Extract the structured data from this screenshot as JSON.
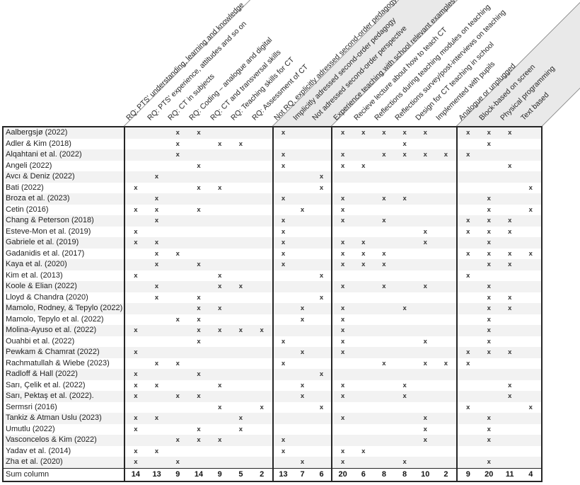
{
  "colors": {
    "row_stripe": "#f2f2f2",
    "band_shade": "#e9e9e9",
    "table_border": "#262626",
    "diagonal_line": "#6e6e6e",
    "text": "#1f1f1f"
  },
  "mark_glyph": "x",
  "header_groups": [
    {
      "shaded": false,
      "columns": [
        "RQ: PTS' understanding, learning and knowledge",
        "RQ: PTS' experience, attitudes and so on",
        "RQ: CT in subjects",
        "RQ: Coding – analogue and digital",
        "RQ: CT and transversal skills",
        "RQ: Teaching skills for CT",
        "RQ: Assessment of CT"
      ]
    },
    {
      "shaded": true,
      "columns": [
        "Not RQ, explicitly adressed second-order pedagogy",
        "Implicitly adressed second-order pedagogy",
        "Not adressed second-order perspective"
      ]
    },
    {
      "shaded": false,
      "columns": [
        "Experience teaching with school relevant examples",
        "Recieve lecture about how to teach CT",
        "Reflections during teaching modules on teaching",
        "Reflections survey/post-interviews on teaching",
        "Design for CT teaching in school",
        "Implemented with pupils"
      ]
    },
    {
      "shaded": true,
      "columns": [
        "Analogue or unplugged",
        "Block-based on screen",
        "Physical programming",
        "Text based"
      ]
    }
  ],
  "rows": [
    {
      "label": "Aalbergsjø (2022)",
      "marks": [
        3,
        4,
        8,
        11,
        12,
        13,
        14,
        15,
        17,
        18,
        19
      ]
    },
    {
      "label": "Adler & Kim (2018)",
      "marks": [
        3,
        5,
        6,
        14,
        18
      ]
    },
    {
      "label": "Alqahtani et al. (2022)",
      "marks": [
        3,
        8,
        11,
        13,
        14,
        15,
        16,
        17
      ]
    },
    {
      "label": "Angeli (2022)",
      "marks": [
        4,
        8,
        11,
        12,
        19
      ]
    },
    {
      "label": "Avcı & Deniz (2022)",
      "marks": [
        2,
        10
      ]
    },
    {
      "label": "Bati (2022)",
      "marks": [
        1,
        4,
        5,
        10,
        20
      ]
    },
    {
      "label": "Broza et al. (2023)",
      "marks": [
        2,
        8,
        11,
        13,
        14,
        18
      ]
    },
    {
      "label": "Cetin (2016)",
      "marks": [
        1,
        2,
        4,
        9,
        11,
        18,
        20
      ]
    },
    {
      "label": "Chang & Peterson (2018)",
      "marks": [
        2,
        8,
        11,
        13,
        17,
        18,
        19
      ]
    },
    {
      "label": "Esteve-Mon et al. (2019)",
      "marks": [
        1,
        8,
        15,
        17,
        18,
        19
      ]
    },
    {
      "label": "Gabriele et al. (2019)",
      "marks": [
        1,
        2,
        8,
        11,
        12,
        15,
        18
      ]
    },
    {
      "label": "Gadanidis et al. (2017)",
      "marks": [
        2,
        3,
        8,
        11,
        12,
        13,
        17,
        18,
        19,
        20
      ]
    },
    {
      "label": "Kaya et al. (2020)",
      "marks": [
        2,
        4,
        8,
        11,
        12,
        13,
        18,
        19
      ]
    },
    {
      "label": "Kim et al. (2013)",
      "marks": [
        1,
        5,
        10,
        17
      ]
    },
    {
      "label": "Koole & Elian (2022)",
      "marks": [
        2,
        5,
        6,
        11,
        13,
        15,
        18
      ]
    },
    {
      "label": "Lloyd & Chandra (2020)",
      "marks": [
        2,
        4,
        10,
        18,
        19
      ]
    },
    {
      "label": "Mamolo, Rodney, & Tepylo (2022)",
      "marks": [
        4,
        5,
        9,
        11,
        14,
        18,
        19
      ]
    },
    {
      "label": "Mamolo, Tepylo et al. (2022)",
      "marks": [
        3,
        4,
        9,
        11,
        18
      ]
    },
    {
      "label": "Molina-Ayuso et al. (2022)",
      "marks": [
        1,
        4,
        5,
        6,
        7,
        11,
        18
      ]
    },
    {
      "label": "Ouahbi et al. (2022)",
      "marks": [
        4,
        8,
        11,
        15,
        18
      ]
    },
    {
      "label": "Pewkam & Chamrat (2022)",
      "marks": [
        1,
        9,
        11,
        17,
        18,
        19
      ]
    },
    {
      "label": "Rachmatullah & Wiebe (2023)",
      "marks": [
        2,
        3,
        8,
        13,
        15,
        16,
        17
      ]
    },
    {
      "label": "Radloff & Hall (2022)",
      "marks": [
        1,
        4,
        10
      ]
    },
    {
      "label": "Sarı, Çelik et al. (2022)",
      "marks": [
        1,
        2,
        5,
        9,
        11,
        14,
        19
      ]
    },
    {
      "label": "Sarı, Pektaş et al. (2022).",
      "marks": [
        1,
        3,
        4,
        9,
        11,
        14,
        19
      ]
    },
    {
      "label": "Sermsri (2016)",
      "marks": [
        5,
        7,
        10,
        17,
        20
      ]
    },
    {
      "label": "Tankiz & Atman Uslu (2023)",
      "marks": [
        1,
        2,
        6,
        11,
        15,
        18
      ]
    },
    {
      "label": "Umutlu (2022)",
      "marks": [
        1,
        4,
        6,
        15,
        18
      ]
    },
    {
      "label": "Vasconcelos & Kim (2022)",
      "marks": [
        3,
        4,
        5,
        8,
        15,
        18
      ]
    },
    {
      "label": "Yadav et al. (2014)",
      "marks": [
        1,
        2,
        8,
        11,
        12
      ]
    },
    {
      "label": "Zha et al. (2020)",
      "marks": [
        1,
        3,
        9,
        11,
        14,
        18
      ]
    }
  ],
  "sum_row": {
    "label": "Sum column",
    "values": [
      14,
      13,
      9,
      14,
      9,
      5,
      2,
      13,
      7,
      6,
      20,
      6,
      8,
      8,
      10,
      2,
      9,
      20,
      11,
      4
    ]
  }
}
